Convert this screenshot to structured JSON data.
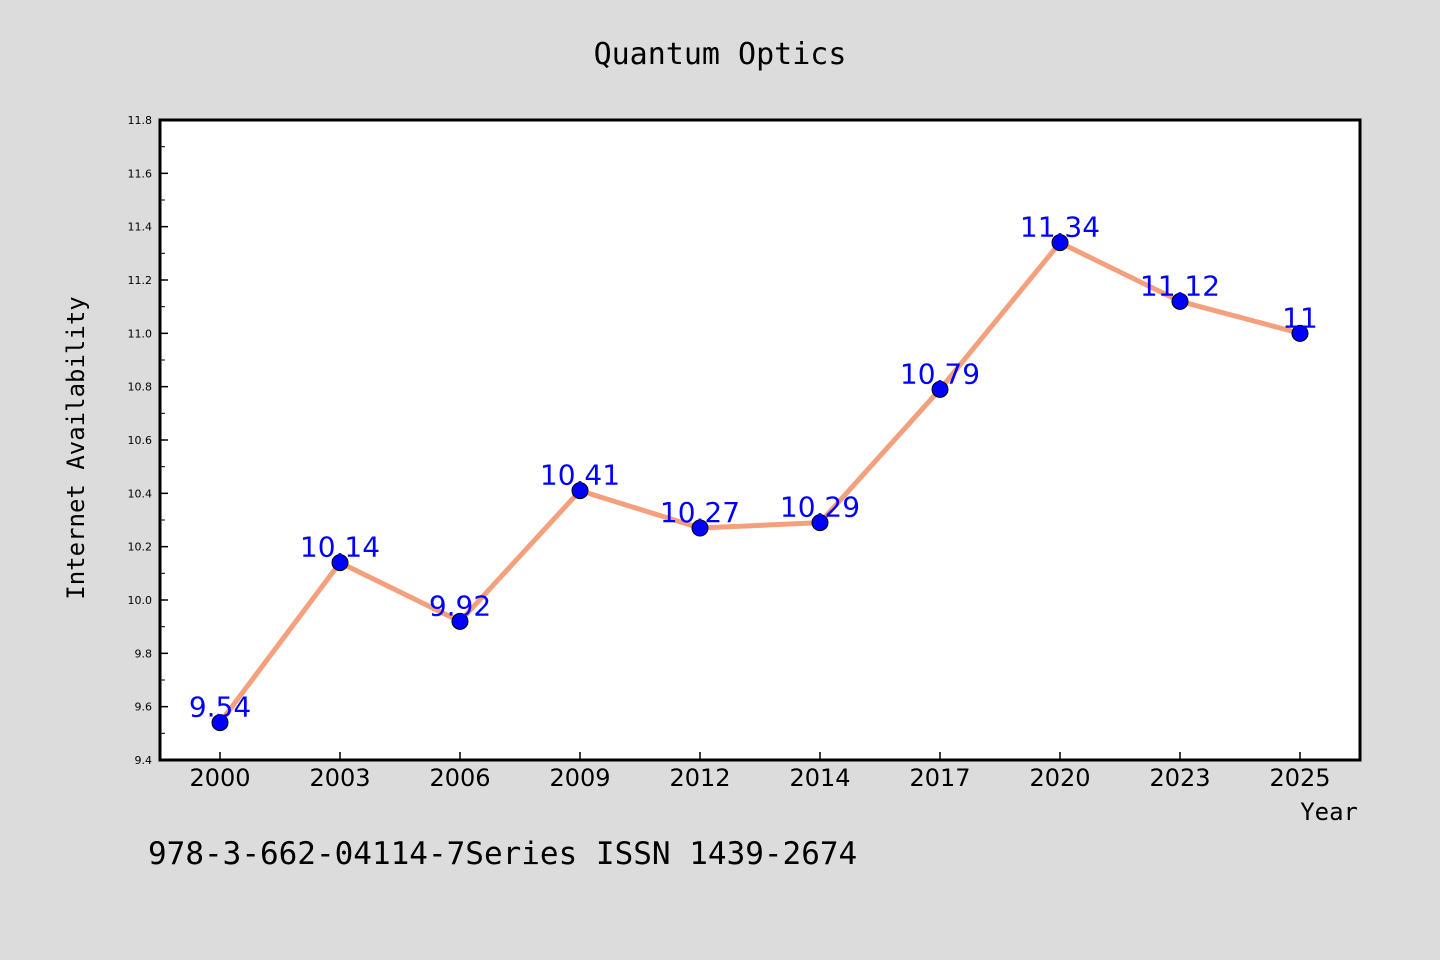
{
  "chart_data": {
    "type": "line",
    "title": "Quantum Optics",
    "xlabel": "Year",
    "ylabel": "Internet Availability",
    "categories": [
      "2000",
      "2003",
      "2006",
      "2009",
      "2012",
      "2014",
      "2017",
      "2020",
      "2023",
      "2025"
    ],
    "series": [
      {
        "values": [
          9.54,
          10.14,
          9.92,
          10.41,
          10.27,
          10.29,
          10.79,
          11.34,
          11.12,
          11
        ],
        "data_labels": [
          "9.54",
          "10.14",
          "9.92",
          "10.41",
          "10.27",
          "10.29",
          "10.79",
          "11.34",
          "11.12",
          "11"
        ],
        "line_color": "#f4a07c",
        "marker_color": "#0000ff",
        "label_color": "#0000ff"
      }
    ],
    "ylim": [
      9.4,
      11.8
    ],
    "yticks": [
      "9.4",
      "9.6",
      "9.8",
      "10.0",
      "10.2",
      "10.4",
      "10.6",
      "10.8",
      "11.0",
      "11.2",
      "11.4",
      "11.6",
      "11.8"
    ],
    "grid": false,
    "legend": "none"
  },
  "footer_text": "978-3-662-04114-7Series ISSN 1439-2674",
  "colors": {
    "background": "#dcdcdc",
    "plot_background": "#ffffff",
    "frame": "#000000"
  }
}
